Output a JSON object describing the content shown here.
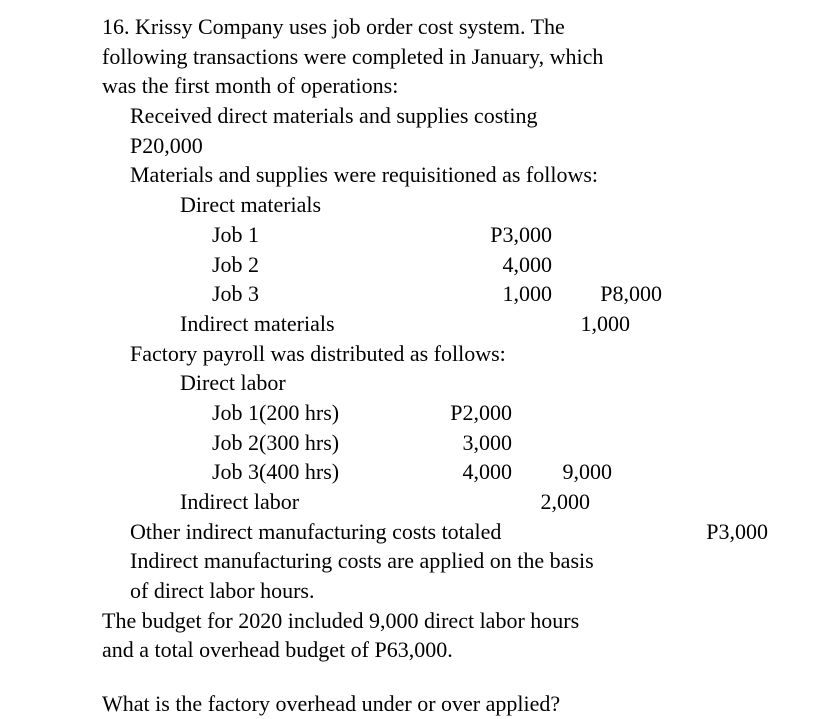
{
  "question_number": "16.",
  "intro_line1": "16. Krissy Company uses job order cost system. The",
  "intro_line2": "following transactions were completed in January, which",
  "intro_line3": "was the first month of operations:",
  "received_line1": "Received direct materials and supplies costing",
  "received_line2": "P20,000",
  "req_line": "Materials and supplies were requisitioned as follows:",
  "direct_materials_label": "Direct materials",
  "jobs": {
    "job1_label": "Job 1",
    "job1_amt": "P3,000",
    "job2_label": "Job 2",
    "job2_amt": "4,000",
    "job3_label": "Job 3",
    "job3_amt": "1,000",
    "job3_total": "P8,000"
  },
  "indirect_materials_label": "Indirect materials",
  "indirect_materials_amt": "1,000",
  "payroll_line": "Factory payroll was distributed as follows:",
  "direct_labor_label": "Direct labor",
  "labor": {
    "job1_label": "Job 1(200 hrs)",
    "job1_amt": "P2,000",
    "job2_label": "Job 2(300 hrs)",
    "job2_amt": "3,000",
    "job3_label": "Job 3(400 hrs)",
    "job3_amt": "4,000",
    "job3_total": "9,000"
  },
  "indirect_labor_label": "Indirect labor",
  "indirect_labor_amt": "2,000",
  "other_cost_text": "Other indirect manufacturing costs totaled",
  "other_cost_amt": "P3,000",
  "applied_line1": "Indirect manufacturing costs are applied on the basis",
  "applied_line2": "of direct labor hours.",
  "budget_line1": "The budget for 2020 included 9,000 direct labor hours",
  "budget_line2": "and a total overhead budget of P63,000.",
  "final_question": "What is the factory overhead under or over applied?"
}
